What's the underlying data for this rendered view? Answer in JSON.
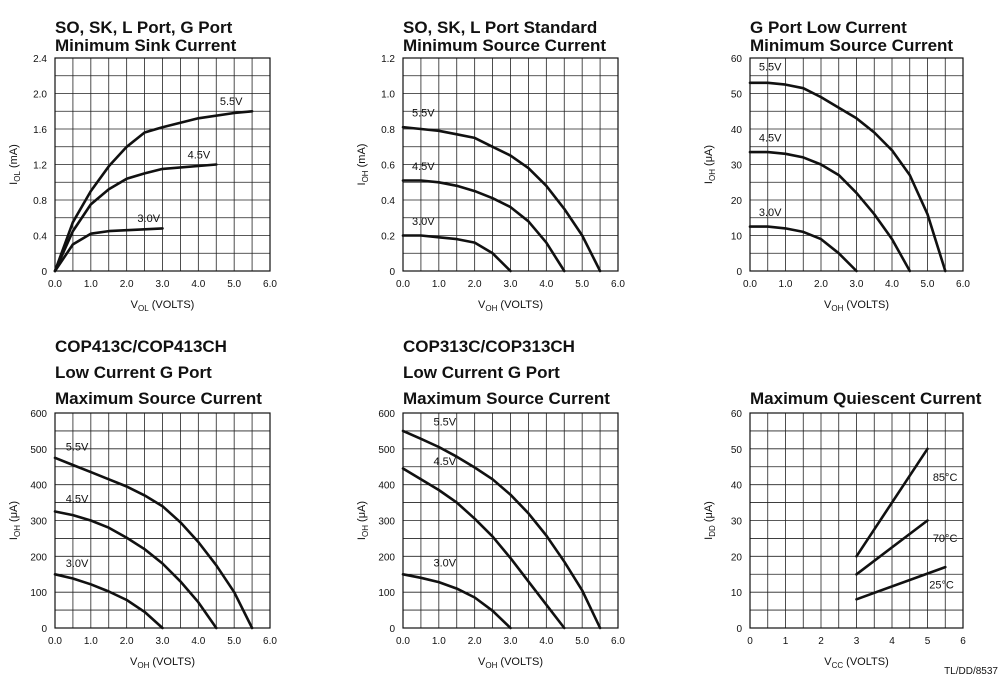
{
  "footer": "TL/DD/8537",
  "chart_data": [
    {
      "type": "line",
      "title": [
        "SO, SK, L Port, G Port",
        "Minimum Sink Current"
      ],
      "ylabel": "I_OL (mA)",
      "xlabel": "V_OL (VOLTS)",
      "xlim": [
        0,
        6
      ],
      "ylim": [
        0,
        2.4
      ],
      "xticks": [
        "0.0",
        "1.0",
        "2.0",
        "3.0",
        "4.0",
        "5.0",
        "6.0"
      ],
      "yticks": [
        "0",
        "0.4",
        "0.8",
        "1.2",
        "1.6",
        "2.0",
        "2.4"
      ],
      "grid": true,
      "series": [
        {
          "name": "3.0V",
          "x": [
            0,
            0.5,
            1.0,
            1.5,
            2.0,
            3.0
          ],
          "y": [
            0,
            0.3,
            0.42,
            0.45,
            0.46,
            0.48
          ],
          "label_pos": [
            2.3,
            0.55
          ]
        },
        {
          "name": "4.5V",
          "x": [
            0,
            0.5,
            1.0,
            1.5,
            2.0,
            2.5,
            3.0,
            4.5
          ],
          "y": [
            0,
            0.45,
            0.75,
            0.92,
            1.04,
            1.1,
            1.15,
            1.2
          ],
          "label_pos": [
            3.7,
            1.27
          ]
        },
        {
          "name": "5.5V",
          "x": [
            0,
            0.5,
            1.0,
            1.5,
            2.0,
            2.5,
            3.0,
            3.5,
            4.0,
            5.0,
            5.5
          ],
          "y": [
            0,
            0.55,
            0.9,
            1.18,
            1.4,
            1.56,
            1.62,
            1.67,
            1.72,
            1.78,
            1.8
          ],
          "label_pos": [
            4.6,
            1.87
          ]
        }
      ]
    },
    {
      "type": "line",
      "title": [
        "SO, SK, L Port Standard",
        "Minimum Source Current"
      ],
      "ylabel": "I_OH (mA)",
      "xlabel": "V_OH (VOLTS)",
      "xlim": [
        0,
        6
      ],
      "ylim": [
        0,
        1.2
      ],
      "xticks": [
        "0.0",
        "1.0",
        "2.0",
        "3.0",
        "4.0",
        "5.0",
        "6.0"
      ],
      "yticks": [
        "0",
        "0.2",
        "0.4",
        "0.6",
        "0.8",
        "1.0",
        "1.2"
      ],
      "grid": true,
      "series": [
        {
          "name": "3.0V",
          "x": [
            0,
            0.5,
            1.0,
            1.5,
            2.0,
            2.5,
            3.0
          ],
          "y": [
            0.2,
            0.2,
            0.19,
            0.18,
            0.16,
            0.1,
            0
          ],
          "label_pos": [
            0.25,
            0.26
          ]
        },
        {
          "name": "4.5V",
          "x": [
            0,
            0.5,
            1.0,
            1.5,
            2.0,
            2.5,
            3.0,
            3.5,
            4.0,
            4.5
          ],
          "y": [
            0.51,
            0.51,
            0.5,
            0.48,
            0.45,
            0.41,
            0.36,
            0.28,
            0.16,
            0
          ],
          "label_pos": [
            0.25,
            0.57
          ]
        },
        {
          "name": "5.5V",
          "x": [
            0,
            0.5,
            1.0,
            1.5,
            2.0,
            2.5,
            3.0,
            3.5,
            4.0,
            4.5,
            5.0,
            5.5
          ],
          "y": [
            0.81,
            0.8,
            0.79,
            0.77,
            0.75,
            0.7,
            0.65,
            0.58,
            0.48,
            0.35,
            0.2,
            0
          ],
          "label_pos": [
            0.25,
            0.87
          ]
        }
      ]
    },
    {
      "type": "line",
      "title": [
        "G Port Low Current",
        "Minimum Source Current"
      ],
      "ylabel": "I_OH (μA)",
      "xlabel": "V_OH (VOLTS)",
      "xlim": [
        0,
        6
      ],
      "ylim": [
        0,
        60
      ],
      "xticks": [
        "0.0",
        "1.0",
        "2.0",
        "3.0",
        "4.0",
        "5.0",
        "6.0"
      ],
      "yticks": [
        "0",
        "10",
        "20",
        "30",
        "40",
        "50",
        "60"
      ],
      "grid": true,
      "series": [
        {
          "name": "3.0V",
          "x": [
            0,
            0.5,
            1.0,
            1.5,
            2.0,
            2.5,
            3.0
          ],
          "y": [
            12.5,
            12.5,
            12,
            11,
            9,
            5,
            0
          ],
          "label_pos": [
            0.25,
            15.5
          ]
        },
        {
          "name": "4.5V",
          "x": [
            0,
            0.5,
            1.0,
            1.5,
            2.0,
            2.5,
            3.0,
            3.5,
            4.0,
            4.5
          ],
          "y": [
            33.5,
            33.5,
            33,
            32,
            30,
            27,
            22,
            16,
            9,
            0
          ],
          "label_pos": [
            0.25,
            36.5
          ]
        },
        {
          "name": "5.5V",
          "x": [
            0,
            0.5,
            1.0,
            1.5,
            2.0,
            2.5,
            3.0,
            3.5,
            4.0,
            4.5,
            5.0,
            5.5
          ],
          "y": [
            53,
            53,
            52.5,
            51.5,
            49,
            46,
            43,
            39,
            34,
            27,
            16,
            0
          ],
          "label_pos": [
            0.25,
            56.5
          ]
        }
      ]
    },
    {
      "type": "line",
      "title": [
        "COP413C/COP413CH",
        "Low Current G Port",
        "Maximum Source Current"
      ],
      "ylabel": "I_OH (μA)",
      "xlabel": "V_OH (VOLTS)",
      "xlim": [
        0,
        6
      ],
      "ylim": [
        0,
        600
      ],
      "xticks": [
        "0.0",
        "1.0",
        "2.0",
        "3.0",
        "4.0",
        "5.0",
        "6.0"
      ],
      "yticks": [
        "0",
        "100",
        "200",
        "300",
        "400",
        "500",
        "600"
      ],
      "grid": true,
      "series": [
        {
          "name": "3.0V",
          "x": [
            0,
            0.5,
            1.0,
            1.5,
            2.0,
            2.5,
            3.0
          ],
          "y": [
            150,
            138,
            122,
            102,
            78,
            45,
            0
          ],
          "label_pos": [
            0.3,
            170
          ]
        },
        {
          "name": "4.5V",
          "x": [
            0,
            0.5,
            1.0,
            1.5,
            2.0,
            2.5,
            3.0,
            3.5,
            4.0,
            4.5
          ],
          "y": [
            325,
            315,
            300,
            280,
            252,
            220,
            180,
            130,
            72,
            0
          ],
          "label_pos": [
            0.3,
            350
          ]
        },
        {
          "name": "5.5V",
          "x": [
            0,
            0.5,
            1.0,
            1.5,
            2.0,
            2.5,
            3.0,
            3.5,
            4.0,
            4.5,
            5.0,
            5.5
          ],
          "y": [
            475,
            455,
            435,
            415,
            395,
            370,
            340,
            295,
            240,
            175,
            100,
            0
          ],
          "label_pos": [
            0.3,
            495
          ]
        }
      ]
    },
    {
      "type": "line",
      "title": [
        "COP313C/COP313CH",
        "Low Current G Port",
        "Maximum Source Current"
      ],
      "ylabel": "I_OH (μA)",
      "xlabel": "V_OH (VOLTS)",
      "xlim": [
        0,
        6
      ],
      "ylim": [
        0,
        600
      ],
      "xticks": [
        "0.0",
        "1.0",
        "2.0",
        "3.0",
        "4.0",
        "5.0",
        "6.0"
      ],
      "yticks": [
        "0",
        "100",
        "200",
        "300",
        "400",
        "500",
        "600"
      ],
      "grid": true,
      "series": [
        {
          "name": "3.0V",
          "x": [
            0,
            0.5,
            1.0,
            1.5,
            2.0,
            2.5,
            3.0
          ],
          "y": [
            150,
            140,
            128,
            110,
            85,
            48,
            0
          ],
          "label_pos": [
            0.85,
            172
          ]
        },
        {
          "name": "4.5V",
          "x": [
            0,
            0.5,
            1.0,
            1.5,
            2.0,
            2.5,
            3.0,
            3.5,
            4.0,
            4.5
          ],
          "y": [
            445,
            415,
            385,
            350,
            305,
            255,
            195,
            130,
            65,
            0
          ],
          "label_pos": [
            0.85,
            455
          ]
        },
        {
          "name": "5.5V",
          "x": [
            0,
            0.5,
            1.0,
            1.5,
            2.0,
            2.5,
            3.0,
            3.5,
            4.0,
            4.5,
            5.0,
            5.5
          ],
          "y": [
            550,
            528,
            505,
            478,
            448,
            415,
            372,
            320,
            258,
            185,
            105,
            0
          ],
          "label_pos": [
            0.85,
            565
          ]
        }
      ]
    },
    {
      "type": "line",
      "title": [
        "Maximum Quiescent Current"
      ],
      "ylabel": "I_DD (μA)",
      "xlabel": "V_CC (VOLTS)",
      "xlim": [
        0,
        6
      ],
      "ylim": [
        0,
        60
      ],
      "xticks": [
        "0",
        "1",
        "2",
        "3",
        "4",
        "5",
        "6"
      ],
      "yticks": [
        "0",
        "10",
        "20",
        "30",
        "40",
        "50",
        "60"
      ],
      "grid": true,
      "series": [
        {
          "name": "85°C",
          "x": [
            3,
            5
          ],
          "y": [
            20,
            50
          ],
          "label_pos": [
            5.15,
            41
          ]
        },
        {
          "name": "70°C",
          "x": [
            3,
            5
          ],
          "y": [
            15,
            30
          ],
          "label_pos": [
            5.15,
            24
          ]
        },
        {
          "name": "25°C",
          "x": [
            3,
            5.5
          ],
          "y": [
            8,
            17
          ],
          "label_pos": [
            5.05,
            11
          ]
        }
      ]
    }
  ]
}
